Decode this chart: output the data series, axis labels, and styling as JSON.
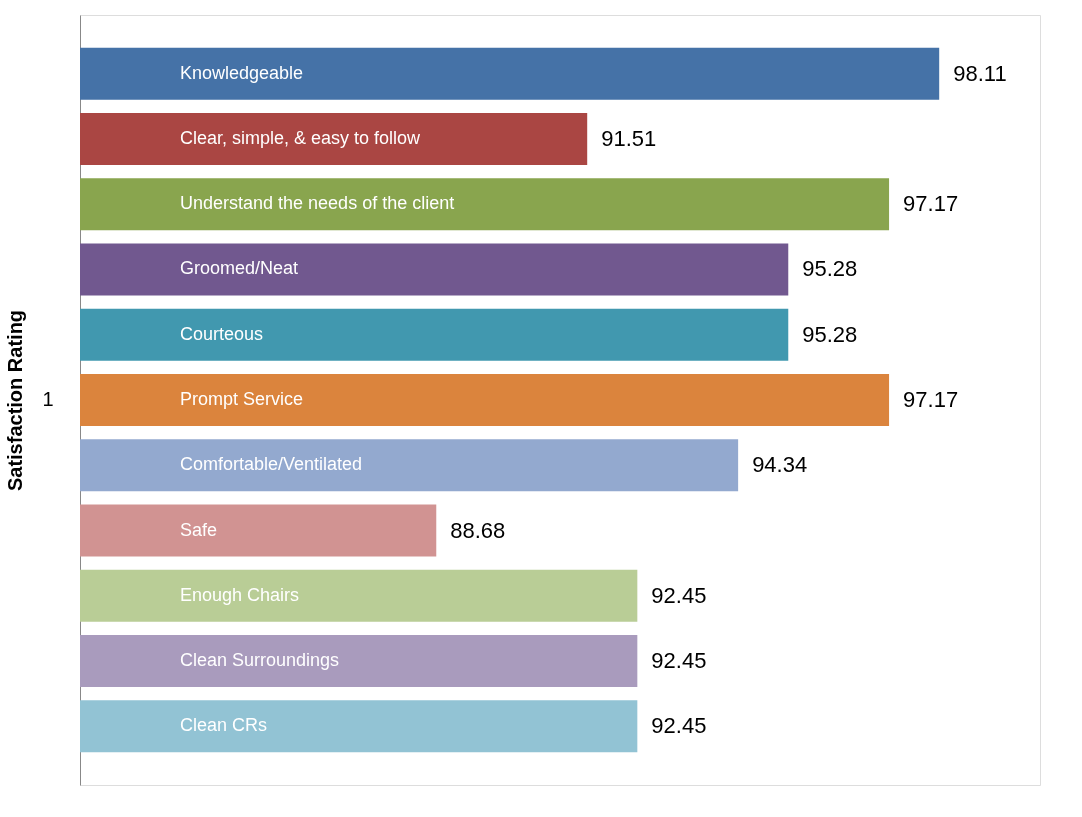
{
  "chart_data": {
    "type": "bar",
    "orientation": "horizontal",
    "ylabel": "Satisfaction Rating",
    "annotations": [
      "1"
    ],
    "categories": [
      "Knowledgeable",
      "Clear, simple, & easy to follow",
      "Understand the needs of the client",
      "Groomed/Neat",
      "Courteous",
      "Prompt Service",
      "Comfortable/Ventilated",
      "Safe",
      "Enough Chairs",
      "Clean Surroundings",
      "Clean CRs"
    ],
    "values": [
      98.11,
      91.51,
      97.17,
      95.28,
      95.28,
      97.17,
      94.34,
      88.68,
      92.45,
      92.45,
      92.45
    ],
    "colors": [
      "#4572a7",
      "#aa4643",
      "#89a54e",
      "#71588f",
      "#4198af",
      "#db843d",
      "#93a9cf",
      "#d19392",
      "#b9cd96",
      "#a99bbd",
      "#92c3d4"
    ],
    "xlim": [
      82,
      100
    ],
    "data_labels": true
  }
}
